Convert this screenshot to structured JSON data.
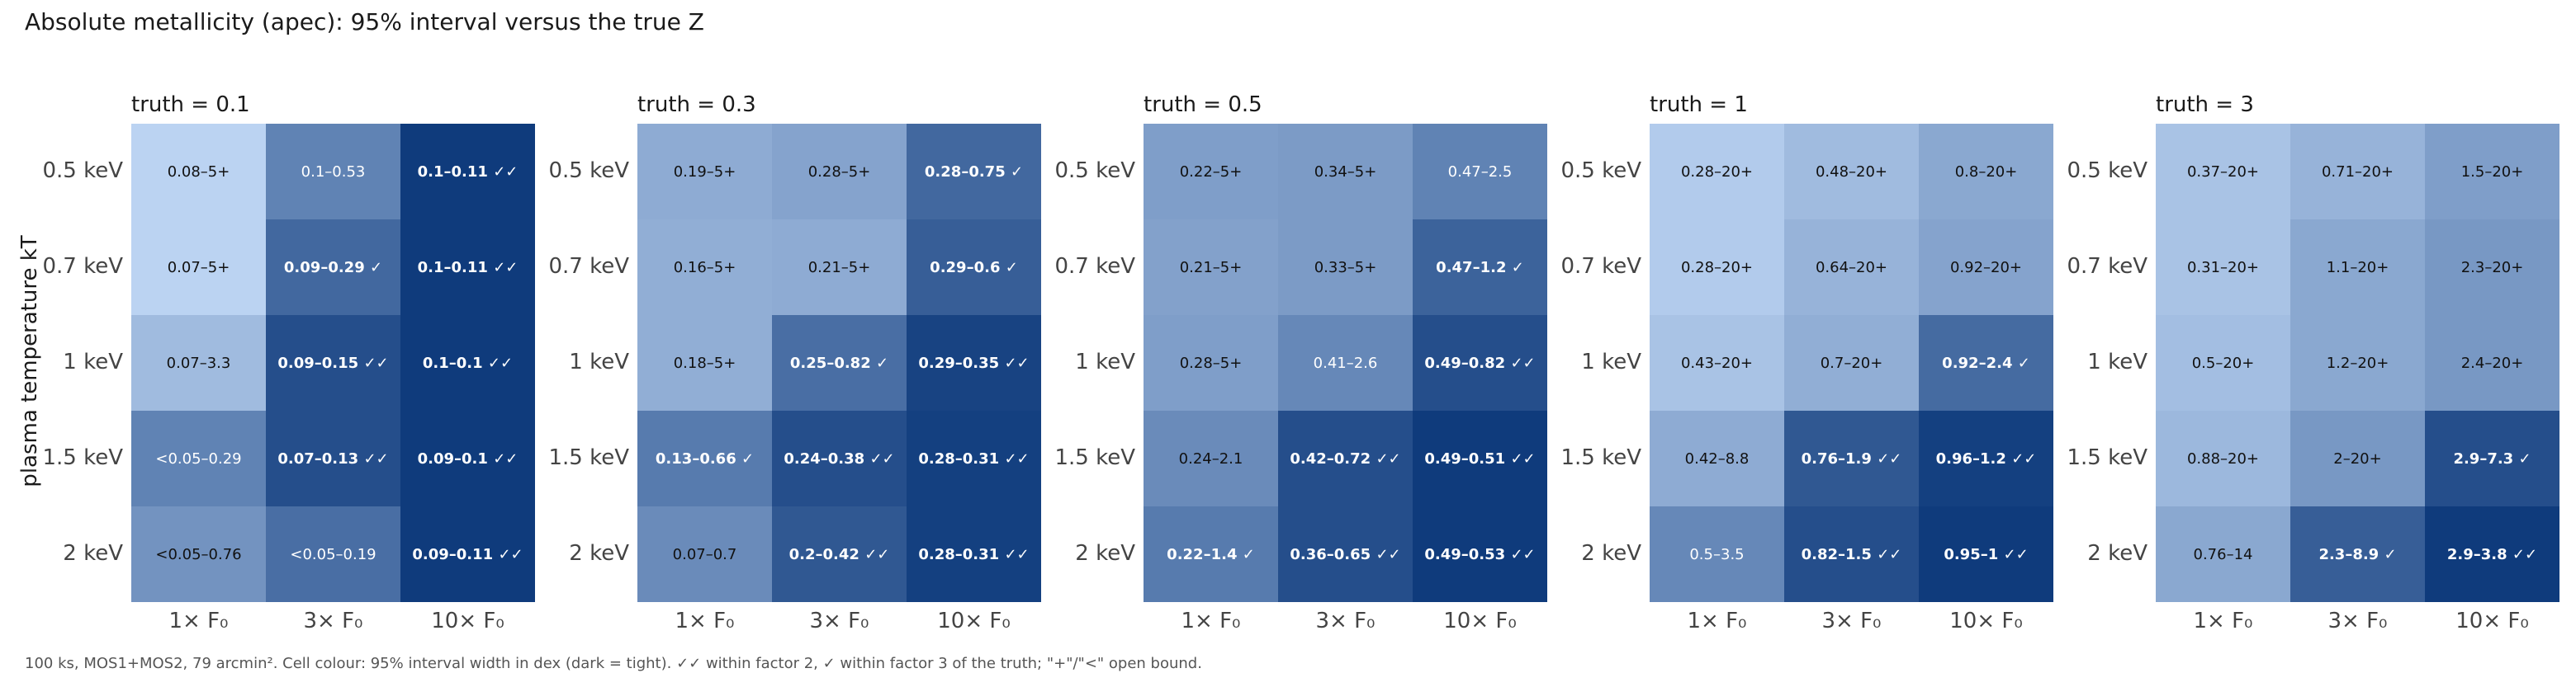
{
  "chart_data": {
    "type": "heatmap",
    "title": "Absolute metallicity (apec): 95% interval versus the true Z",
    "ylabel": "plasma temperature kT",
    "xlabel": "",
    "footnote": "100 ks, MOS1+MOS2, 79 arcmin². Cell colour: 95% interval width in dex (dark = tight). ✓✓ within factor 2, ✓ within factor 3 of the truth; \"+\"/\"<\" open bound.",
    "colors": {
      "light": "#c4dbf8",
      "dark": "#0f3b7c",
      "text_dark": "#111111",
      "text_light": "#ffffff"
    },
    "rows": [
      "0.5 keV",
      "0.7 keV",
      "1 keV",
      "1.5 keV",
      "2 keV"
    ],
    "cols": [
      "1× F₀",
      "3× F₀",
      "10× F₀"
    ],
    "panels": [
      {
        "title": "truth = 0.1",
        "cells": [
          [
            {
              "text": "0.08–5+",
              "shade": 0.05,
              "bold": false
            },
            {
              "text": "0.1–0.53",
              "shade": 0.55,
              "bold": false
            },
            {
              "text": "0.1–0.11 ✓✓",
              "shade": 1.0,
              "bold": true
            }
          ],
          [
            {
              "text": "0.07–5+",
              "shade": 0.05,
              "bold": false
            },
            {
              "text": "0.09–0.29 ✓",
              "shade": 0.72,
              "bold": true
            },
            {
              "text": "0.1–0.11 ✓✓",
              "shade": 1.0,
              "bold": true
            }
          ],
          [
            {
              "text": "0.07–3.3",
              "shade": 0.2,
              "bold": false
            },
            {
              "text": "0.09–0.15 ✓✓",
              "shade": 0.88,
              "bold": true
            },
            {
              "text": "0.1–0.1 ✓✓",
              "shade": 1.0,
              "bold": true
            }
          ],
          [
            {
              "text": "<0.05–0.29",
              "shade": 0.55,
              "bold": false
            },
            {
              "text": "0.07–0.13 ✓✓",
              "shade": 0.88,
              "bold": true
            },
            {
              "text": "0.09–0.1 ✓✓",
              "shade": 1.0,
              "bold": true
            }
          ],
          [
            {
              "text": "<0.05–0.76",
              "shade": 0.45,
              "bold": false
            },
            {
              "text": "<0.05–0.19",
              "shade": 0.68,
              "bold": false
            },
            {
              "text": "0.09–0.11 ✓✓",
              "shade": 1.0,
              "bold": true
            }
          ]
        ]
      },
      {
        "title": "truth = 0.3",
        "cells": [
          [
            {
              "text": "0.19–5+",
              "shade": 0.3,
              "bold": false
            },
            {
              "text": "0.28–5+",
              "shade": 0.35,
              "bold": false
            },
            {
              "text": "0.28–0.75 ✓",
              "shade": 0.72,
              "bold": true
            }
          ],
          [
            {
              "text": "0.16–5+",
              "shade": 0.28,
              "bold": false
            },
            {
              "text": "0.21–5+",
              "shade": 0.3,
              "bold": false
            },
            {
              "text": "0.29–0.6 ✓",
              "shade": 0.78,
              "bold": true
            }
          ],
          [
            {
              "text": "0.18–5+",
              "shade": 0.28,
              "bold": false
            },
            {
              "text": "0.25–0.82 ✓",
              "shade": 0.68,
              "bold": true
            },
            {
              "text": "0.29–0.35 ✓✓",
              "shade": 0.95,
              "bold": true
            }
          ],
          [
            {
              "text": "0.13–0.66 ✓",
              "shade": 0.6,
              "bold": true
            },
            {
              "text": "0.24–0.38 ✓✓",
              "shade": 0.88,
              "bold": true
            },
            {
              "text": "0.28–0.31 ✓✓",
              "shade": 0.97,
              "bold": true
            }
          ],
          [
            {
              "text": "0.07–0.7",
              "shade": 0.5,
              "bold": false
            },
            {
              "text": "0.2–0.42 ✓✓",
              "shade": 0.82,
              "bold": true
            },
            {
              "text": "0.28–0.31 ✓✓",
              "shade": 0.97,
              "bold": true
            }
          ]
        ]
      },
      {
        "title": "truth = 0.5",
        "cells": [
          [
            {
              "text": "0.22–5+",
              "shade": 0.38,
              "bold": false
            },
            {
              "text": "0.34–5+",
              "shade": 0.4,
              "bold": false
            },
            {
              "text": "0.47–2.5",
              "shade": 0.55,
              "bold": false
            }
          ],
          [
            {
              "text": "0.21–5+",
              "shade": 0.36,
              "bold": false
            },
            {
              "text": "0.33–5+",
              "shade": 0.4,
              "bold": false
            },
            {
              "text": "0.47–1.2 ✓",
              "shade": 0.75,
              "bold": true
            }
          ],
          [
            {
              "text": "0.28–5+",
              "shade": 0.38,
              "bold": false
            },
            {
              "text": "0.41–2.6",
              "shade": 0.52,
              "bold": false
            },
            {
              "text": "0.49–0.82 ✓✓",
              "shade": 0.88,
              "bold": true
            }
          ],
          [
            {
              "text": "0.24–2.1",
              "shade": 0.5,
              "bold": false
            },
            {
              "text": "0.42–0.72 ✓✓",
              "shade": 0.88,
              "bold": true
            },
            {
              "text": "0.49–0.51 ✓✓",
              "shade": 1.0,
              "bold": true
            }
          ],
          [
            {
              "text": "0.22–1.4 ✓",
              "shade": 0.6,
              "bold": true
            },
            {
              "text": "0.36–0.65 ✓✓",
              "shade": 0.88,
              "bold": true
            },
            {
              "text": "0.49–0.53 ✓✓",
              "shade": 1.0,
              "bold": true
            }
          ]
        ]
      },
      {
        "title": "truth = 1",
        "cells": [
          [
            {
              "text": "0.28–20+",
              "shade": 0.1,
              "bold": false
            },
            {
              "text": "0.48–20+",
              "shade": 0.2,
              "bold": false
            },
            {
              "text": "0.8–20+",
              "shade": 0.32,
              "bold": false
            }
          ],
          [
            {
              "text": "0.28–20+",
              "shade": 0.1,
              "bold": false
            },
            {
              "text": "0.64–20+",
              "shade": 0.25,
              "bold": false
            },
            {
              "text": "0.92–20+",
              "shade": 0.35,
              "bold": false
            }
          ],
          [
            {
              "text": "0.43–20+",
              "shade": 0.15,
              "bold": false
            },
            {
              "text": "0.7–20+",
              "shade": 0.28,
              "bold": false
            },
            {
              "text": "0.92–2.4 ✓",
              "shade": 0.7,
              "bold": true
            }
          ],
          [
            {
              "text": "0.42–8.8",
              "shade": 0.3,
              "bold": false
            },
            {
              "text": "0.76–1.9 ✓✓",
              "shade": 0.82,
              "bold": true
            },
            {
              "text": "0.96–1.2 ✓✓",
              "shade": 0.97,
              "bold": true
            }
          ],
          [
            {
              "text": "0.5–3.5",
              "shade": 0.52,
              "bold": false
            },
            {
              "text": "0.82–1.5 ✓✓",
              "shade": 0.88,
              "bold": true
            },
            {
              "text": "0.95–1 ✓✓",
              "shade": 1.0,
              "bold": true
            }
          ]
        ]
      },
      {
        "title": "truth = 3",
        "cells": [
          [
            {
              "text": "0.37–20+",
              "shade": 0.15,
              "bold": false
            },
            {
              "text": "0.71–20+",
              "shade": 0.25,
              "bold": false
            },
            {
              "text": "1.5–20+",
              "shade": 0.38,
              "bold": false
            }
          ],
          [
            {
              "text": "0.31–20+",
              "shade": 0.15,
              "bold": false
            },
            {
              "text": "1.1–20+",
              "shade": 0.32,
              "bold": false
            },
            {
              "text": "2.3–20+",
              "shade": 0.42,
              "bold": false
            }
          ],
          [
            {
              "text": "0.5–20+",
              "shade": 0.18,
              "bold": false
            },
            {
              "text": "1.2–20+",
              "shade": 0.32,
              "bold": false
            },
            {
              "text": "2.4–20+",
              "shade": 0.42,
              "bold": false
            }
          ],
          [
            {
              "text": "0.88–20+",
              "shade": 0.22,
              "bold": false
            },
            {
              "text": "2–20+",
              "shade": 0.42,
              "bold": false
            },
            {
              "text": "2.9–7.3 ✓",
              "shade": 0.88,
              "bold": true
            }
          ],
          [
            {
              "text": "0.76–14",
              "shade": 0.32,
              "bold": false
            },
            {
              "text": "2.3–8.9 ✓",
              "shade": 0.78,
              "bold": true
            },
            {
              "text": "2.9–3.8 ✓✓",
              "shade": 1.0,
              "bold": true
            }
          ]
        ]
      }
    ]
  }
}
